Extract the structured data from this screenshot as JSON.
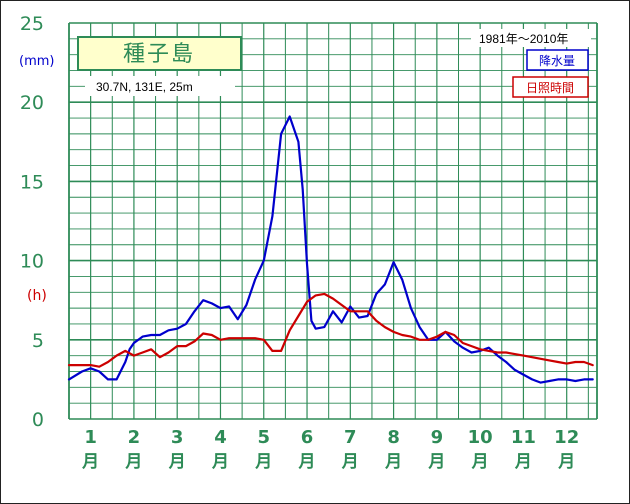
{
  "station": {
    "name": "種子島",
    "coords": "30.7N,  131E,  25m",
    "period": "1981年〜2010年"
  },
  "colors": {
    "grid": "#2e8b57",
    "precip": "#0000cc",
    "sunshine": "#cc0000",
    "station_box": "#ffffcc"
  },
  "chart_data": {
    "type": "line",
    "title": "種子島",
    "xlabel": "",
    "ylabel_left": "(mm)",
    "ylabel_sun": "(h)",
    "ylim": [
      0,
      25
    ],
    "yticks": [
      0,
      5,
      10,
      15,
      20,
      25
    ],
    "xlim": [
      0.5,
      12.7
    ],
    "categories": [
      "1",
      "2",
      "3",
      "4",
      "5",
      "6",
      "7",
      "8",
      "9",
      "10",
      "11",
      "12"
    ],
    "category_suffix": "月",
    "grid": true,
    "legend_position": "top-right",
    "series": [
      {
        "name": "降水量",
        "color": "#0000cc",
        "x": [
          0.5,
          0.8,
          1.0,
          1.2,
          1.4,
          1.6,
          1.8,
          1.9,
          2.0,
          2.2,
          2.4,
          2.6,
          2.8,
          3.0,
          3.2,
          3.4,
          3.6,
          3.8,
          4.0,
          4.2,
          4.4,
          4.6,
          4.8,
          5.0,
          5.2,
          5.4,
          5.6,
          5.8,
          5.9,
          6.0,
          6.1,
          6.2,
          6.4,
          6.6,
          6.8,
          7.0,
          7.2,
          7.4,
          7.6,
          7.8,
          8.0,
          8.2,
          8.4,
          8.6,
          8.8,
          9.0,
          9.2,
          9.4,
          9.6,
          9.8,
          10.0,
          10.2,
          10.4,
          10.6,
          10.8,
          11.0,
          11.2,
          11.4,
          11.6,
          11.8,
          12.0,
          12.2,
          12.4,
          12.6
        ],
        "values": [
          2.5,
          3.0,
          3.2,
          3.0,
          2.5,
          2.5,
          3.6,
          4.4,
          4.8,
          5.2,
          5.3,
          5.3,
          5.6,
          5.7,
          6.0,
          6.8,
          7.5,
          7.3,
          7.0,
          7.1,
          6.3,
          7.2,
          8.8,
          10.0,
          12.8,
          18.0,
          19.1,
          17.5,
          14.5,
          9.8,
          6.2,
          5.7,
          5.8,
          6.8,
          6.1,
          7.1,
          6.4,
          6.5,
          7.9,
          8.5,
          9.9,
          8.8,
          7.0,
          5.8,
          5.0,
          5.0,
          5.5,
          4.9,
          4.5,
          4.2,
          4.3,
          4.5,
          4.0,
          3.6,
          3.1,
          2.8,
          2.5,
          2.3,
          2.4,
          2.5,
          2.5,
          2.4,
          2.5,
          2.5
        ]
      },
      {
        "name": "日照時間",
        "color": "#cc0000",
        "x": [
          0.5,
          0.8,
          1.0,
          1.2,
          1.4,
          1.6,
          1.8,
          2.0,
          2.2,
          2.4,
          2.6,
          2.8,
          3.0,
          3.2,
          3.4,
          3.6,
          3.8,
          4.0,
          4.2,
          4.4,
          4.6,
          4.8,
          5.0,
          5.2,
          5.4,
          5.6,
          5.8,
          6.0,
          6.2,
          6.4,
          6.6,
          6.8,
          7.0,
          7.2,
          7.4,
          7.6,
          7.8,
          8.0,
          8.2,
          8.4,
          8.6,
          8.8,
          9.0,
          9.2,
          9.4,
          9.6,
          9.8,
          10.0,
          10.2,
          10.4,
          10.6,
          10.8,
          11.0,
          11.2,
          11.4,
          11.6,
          11.8,
          12.0,
          12.2,
          12.4,
          12.6
        ],
        "values": [
          3.4,
          3.4,
          3.4,
          3.3,
          3.6,
          4.0,
          4.3,
          4.0,
          4.2,
          4.4,
          3.9,
          4.2,
          4.6,
          4.6,
          4.9,
          5.4,
          5.3,
          5.0,
          5.1,
          5.1,
          5.1,
          5.1,
          5.0,
          4.3,
          4.3,
          5.6,
          6.5,
          7.4,
          7.8,
          7.9,
          7.6,
          7.2,
          6.8,
          6.8,
          6.8,
          6.2,
          5.8,
          5.5,
          5.3,
          5.2,
          5.0,
          5.0,
          5.2,
          5.5,
          5.3,
          4.8,
          4.6,
          4.4,
          4.3,
          4.2,
          4.2,
          4.1,
          4.0,
          3.9,
          3.8,
          3.7,
          3.6,
          3.5,
          3.6,
          3.6,
          3.4
        ]
      }
    ]
  }
}
